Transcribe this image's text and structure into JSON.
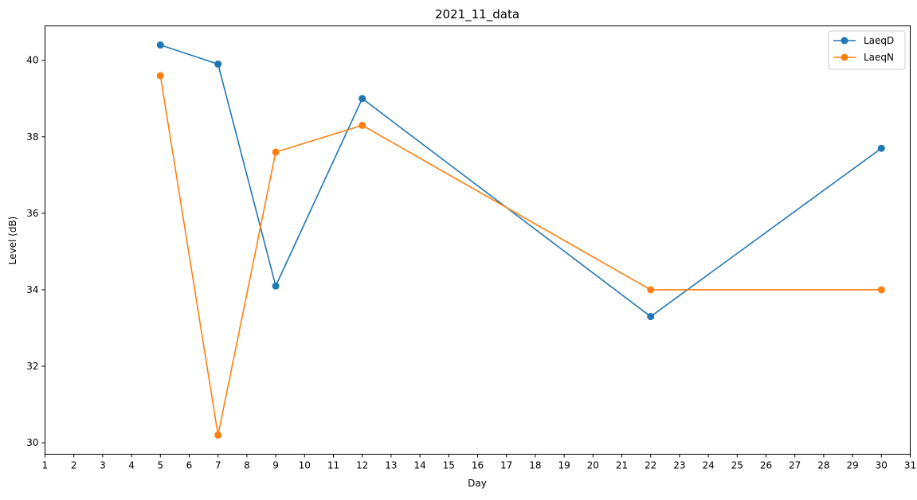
{
  "chart_data": {
    "type": "line",
    "title": "2021_11_data",
    "xlabel": "Day",
    "ylabel": "Level (dB)",
    "xlim": [
      1,
      31
    ],
    "ylim": [
      29.7,
      40.9
    ],
    "x_ticks": [
      1,
      2,
      3,
      4,
      5,
      6,
      7,
      8,
      9,
      10,
      11,
      12,
      13,
      14,
      15,
      16,
      17,
      18,
      19,
      20,
      21,
      22,
      23,
      24,
      25,
      26,
      27,
      28,
      29,
      30,
      31
    ],
    "y_ticks": [
      30,
      32,
      34,
      36,
      38,
      40
    ],
    "grid": false,
    "legend_position": "top-right",
    "series": [
      {
        "name": "LaeqD",
        "color": "#1f77b4",
        "marker": "circle",
        "x": [
          5,
          7,
          9,
          12,
          22,
          30
        ],
        "y": [
          40.4,
          39.9,
          34.1,
          39.0,
          33.3,
          37.7
        ]
      },
      {
        "name": "LaeqN",
        "color": "#ff7f0e",
        "marker": "circle",
        "x": [
          5,
          7,
          9,
          12,
          22,
          30
        ],
        "y": [
          39.6,
          30.2,
          37.6,
          38.3,
          34.0,
          34.0
        ]
      }
    ]
  }
}
